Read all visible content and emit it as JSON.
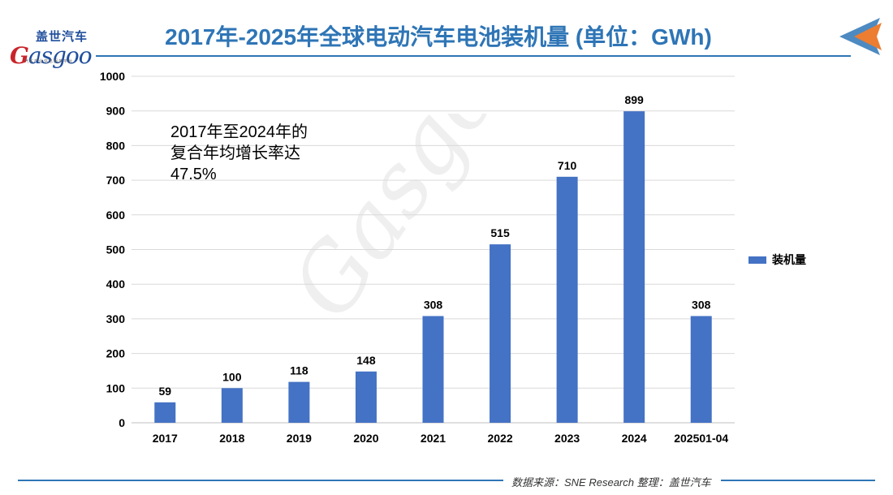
{
  "logo": {
    "cn": "盖世汽车",
    "en_first": "G",
    "en_rest": "asgoo",
    "sub": "汽车产业信息服务平台"
  },
  "title": "2017年-2025年全球电动汽车电池装机量 (单位：GWh)",
  "annotation": [
    "2017年至2024年的",
    "复合年均增长率达",
    "47.5%"
  ],
  "source": "数据来源：SNE Research 整理：盖世汽车",
  "colors": {
    "bar": "#4472c4",
    "title": "#2e75b6",
    "accent": "#ed7d31"
  },
  "chart_data": {
    "type": "bar",
    "title": "2017年-2025年全球电动汽车电池装机量 (单位：GWh)",
    "categories": [
      "2017",
      "2018",
      "2019",
      "2020",
      "2021",
      "2022",
      "2023",
      "2024",
      "202501-04"
    ],
    "series": [
      {
        "name": "装机量",
        "values": [
          59,
          100,
          118,
          148,
          308,
          515,
          710,
          899,
          308
        ]
      }
    ],
    "ylim": [
      0,
      1000
    ],
    "yticks": [
      0,
      100,
      200,
      300,
      400,
      500,
      600,
      700,
      800,
      900,
      1000
    ],
    "grid": true,
    "legend": "right",
    "data_labels": true
  }
}
